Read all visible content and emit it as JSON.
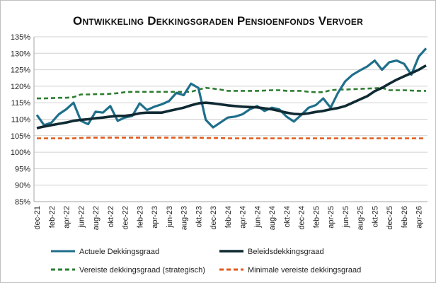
{
  "chart_data": {
    "type": "line",
    "title": "Ontwikkeling Dekkingsgraden Pensioenfonds Vervoer",
    "xlabel": "",
    "ylabel": "",
    "ylim": [
      85,
      135
    ],
    "yticks": [
      85,
      90,
      95,
      100,
      105,
      110,
      115,
      120,
      125,
      130,
      135
    ],
    "ytick_labels": [
      "85%",
      "90%",
      "95%",
      "100%",
      "105%",
      "110%",
      "115%",
      "120%",
      "125%",
      "130%",
      "135%"
    ],
    "grid": true,
    "legend_position": "bottom",
    "x_tick_labels": [
      "dec-21",
      "feb-22",
      "apr-22",
      "jun-22",
      "aug-22",
      "okt-22",
      "dec-22",
      "feb-23",
      "apr-23",
      "jun-23",
      "aug-23",
      "okt-23",
      "dec-23",
      "feb-24",
      "apr-24",
      "jun-24",
      "aug-24",
      "okt-24",
      "dec-24",
      "feb-25",
      "apr-25",
      "jun-25",
      "aug-25",
      "okt-25",
      "dec-25",
      "feb-26",
      "apr-26"
    ],
    "series": [
      {
        "name": "Actuele Dekkingsgraad",
        "color": "#1f6f8b",
        "style": "solid",
        "values": [
          111.3,
          108.2,
          109.0,
          111.5,
          113.0,
          115.0,
          109.5,
          108.5,
          112.3,
          112.0,
          114.0,
          109.5,
          110.5,
          111.0,
          114.8,
          112.8,
          113.8,
          114.5,
          115.5,
          118.0,
          117.3,
          120.8,
          119.5,
          109.8,
          107.5,
          109.0,
          110.5,
          110.8,
          111.5,
          113.0,
          114.0,
          112.5,
          113.5,
          113.0,
          110.8,
          109.3,
          111.3,
          113.5,
          114.3,
          116.3,
          113.5,
          118.0,
          121.5,
          123.5,
          124.8,
          126.0,
          127.8,
          125.0,
          127.3,
          127.8,
          126.8,
          123.5,
          129.0,
          131.5
        ]
      },
      {
        "name": "Beleidsdekkingsgraad",
        "color": "#0f2a33",
        "style": "solid",
        "values": [
          107.3,
          107.8,
          108.2,
          108.6,
          109.0,
          109.5,
          109.8,
          110.0,
          110.3,
          110.5,
          110.8,
          111.0,
          111.0,
          111.3,
          111.8,
          112.0,
          112.0,
          112.0,
          112.5,
          113.0,
          113.5,
          114.2,
          114.8,
          115.0,
          114.8,
          114.5,
          114.2,
          114.0,
          113.8,
          113.7,
          113.6,
          113.3,
          113.0,
          112.5,
          112.0,
          111.6,
          111.5,
          111.8,
          112.2,
          112.5,
          113.0,
          113.4,
          114.0,
          115.0,
          116.0,
          117.0,
          118.5,
          119.5,
          120.8,
          122.0,
          123.0,
          124.0,
          125.0,
          126.3
        ]
      },
      {
        "name": "Vereiste dekkingsgraad (strategisch)",
        "color": "#2e7d32",
        "style": "dashed",
        "values": [
          116.3,
          116.3,
          116.4,
          116.5,
          116.5,
          116.7,
          117.5,
          117.5,
          117.6,
          117.6,
          117.7,
          117.9,
          118.2,
          118.3,
          118.3,
          118.3,
          118.3,
          118.3,
          118.3,
          118.3,
          118.3,
          118.3,
          119.0,
          119.5,
          119.3,
          119.0,
          118.6,
          118.6,
          118.6,
          118.6,
          118.6,
          118.7,
          118.8,
          118.8,
          118.6,
          118.6,
          118.6,
          118.3,
          118.2,
          118.2,
          118.8,
          119.0,
          119.0,
          119.1,
          119.2,
          119.3,
          119.4,
          119.5,
          118.8,
          118.8,
          118.8,
          118.7,
          118.6,
          118.6
        ]
      },
      {
        "name": "Minimale vereiste dekkingsgraad",
        "color": "#e05a1a",
        "style": "dashed",
        "values": [
          104.2,
          104.2,
          104.2,
          104.2,
          104.2,
          104.2,
          104.3,
          104.4,
          104.4,
          104.4,
          104.4,
          104.4,
          104.4,
          104.4,
          104.4,
          104.4,
          104.4,
          104.4,
          104.4,
          104.4,
          104.4,
          104.4,
          104.4,
          104.3,
          104.3,
          104.3,
          104.2,
          104.2,
          104.2,
          104.2,
          104.2,
          104.2,
          104.2,
          104.2,
          104.2,
          104.2,
          104.2,
          104.2,
          104.2,
          104.2,
          104.2,
          104.2,
          104.2,
          104.2,
          104.2,
          104.2,
          104.2,
          104.2,
          104.2,
          104.2,
          104.2,
          104.2,
          104.2,
          104.2
        ]
      }
    ]
  }
}
